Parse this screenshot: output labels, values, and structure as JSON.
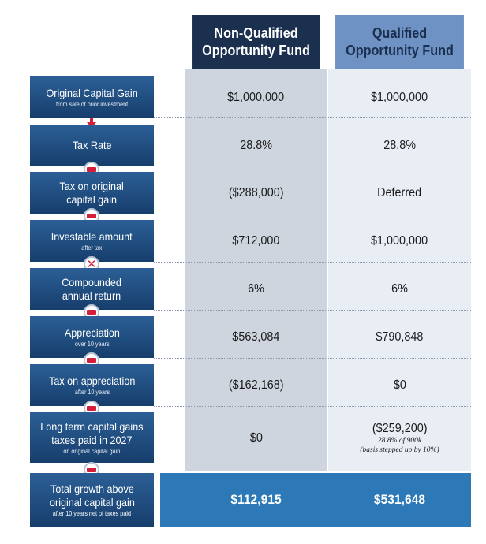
{
  "columns": {
    "non_qualified": "Non-Qualified\nOpportunity Fund",
    "qualified": "Qualified\nOpportunity Fund"
  },
  "rows": [
    {
      "label": "Original Capital Gain",
      "sub": "from sale of prior investment",
      "nq": "$1,000,000",
      "q": "$1,000,000"
    },
    {
      "label": "Tax Rate",
      "sub": "",
      "nq": "28.8%",
      "q": "28.8%"
    },
    {
      "label": "Tax on original\ncapital gain",
      "sub": "",
      "nq": "($288,000)",
      "q": "Deferred"
    },
    {
      "label": "Investable amount",
      "sub": "after tax",
      "nq": "$712,000",
      "q": "$1,000,000"
    },
    {
      "label": "Compounded\nannual return",
      "sub": "",
      "nq": "6%",
      "q": "6%"
    },
    {
      "label": "Appreciation",
      "sub": "over 10 years",
      "nq": "$563,084",
      "q": "$790,848"
    },
    {
      "label": "Tax on appreciation",
      "sub": "after 10 years",
      "nq": "($162,168)",
      "q": "$0"
    },
    {
      "label": "Long term capital gains\ntaxes paid in 2027",
      "sub": "on original capital gain",
      "nq": "$0",
      "q": "($259,200)",
      "q_note1": "28.8% of 900k",
      "q_note2": "(basis stepped up by 10%)"
    }
  ],
  "operators": [
    "arrow-down",
    "minus",
    "minus",
    "multiply",
    "minus",
    "minus",
    "minus",
    "minus"
  ],
  "total": {
    "label": "Total growth above\noriginal capital gain",
    "sub": "after 10 years net of taxes paid",
    "nq": "$112,915",
    "q": "$531,648"
  },
  "colors": {
    "label_bg": "#1f4a7c",
    "nq_header": "#1b2f4f",
    "q_header": "#6f92c4",
    "operator": "#d41f3a",
    "total_bg": "#2d78b7"
  }
}
